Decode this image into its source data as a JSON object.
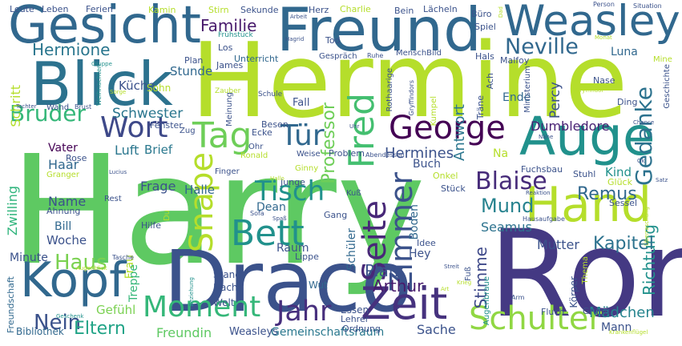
{
  "title": "Word cloud",
  "palette": {
    "background": "#ffffff",
    "lime": "#b5de2b",
    "green": "#5ec962",
    "teal": "#21918c",
    "blue": "#3b528b",
    "indigo": "#443983",
    "purple": "#440154"
  },
  "words": [
    {
      "text": "Harry",
      "color": "#5ec962"
    },
    {
      "text": "Hermine",
      "color": "#b5de2b"
    },
    {
      "text": "Ron",
      "color": "#443983"
    },
    {
      "text": "Draco",
      "color": "#3b528b"
    },
    {
      "text": "Blick",
      "color": "#2c728e"
    },
    {
      "text": "Freund",
      "color": "#31688e"
    },
    {
      "text": "Gesicht",
      "color": "#31688e"
    },
    {
      "text": "Auge",
      "color": "#21918c"
    },
    {
      "text": "Hand",
      "color": "#b5de2b"
    },
    {
      "text": "Zeit",
      "color": "#46327e"
    },
    {
      "text": "Kopf",
      "color": "#31688e"
    },
    {
      "text": "Weasley",
      "color": "#31688e"
    },
    {
      "text": "George",
      "color": "#440154"
    },
    {
      "text": "Tag",
      "color": "#6ece58"
    },
    {
      "text": "Wort",
      "color": "#3e4989"
    },
    {
      "text": "Moment",
      "color": "#35b779"
    },
    {
      "text": "Schulter",
      "color": "#90d743"
    },
    {
      "text": "Tür",
      "color": "#31688e"
    },
    {
      "text": "Bett",
      "color": "#21918c"
    },
    {
      "text": "Fred",
      "color": "#44bf70"
    },
    {
      "text": "Seite",
      "color": "#482878"
    },
    {
      "text": "Jahr",
      "color": "#472f7d"
    },
    {
      "text": "Snape",
      "color": "#b5de2b"
    },
    {
      "text": "Tisch",
      "color": "#21918c"
    },
    {
      "text": "Zimmer",
      "color": "#3b528b"
    },
    {
      "text": "Gedanke",
      "color": "#2c728e"
    },
    {
      "text": "Bruder",
      "color": "#35b779"
    },
    {
      "text": "Blaise",
      "color": "#472c7a"
    },
    {
      "text": "Mund",
      "color": "#26828e"
    },
    {
      "text": "Neville",
      "color": "#31688e"
    },
    {
      "text": "Haus",
      "color": "#7ad151"
    },
    {
      "text": "Nein",
      "color": "#3b528b"
    },
    {
      "text": "Hermione",
      "color": "#2a768e"
    },
    {
      "text": "Familie",
      "color": "#481a6c"
    },
    {
      "text": "Professor",
      "color": "#6ece58"
    },
    {
      "text": "Stimme",
      "color": "#3e4989"
    },
    {
      "text": "Richtung",
      "color": "#21918c"
    },
    {
      "text": "Remus",
      "color": "#31688e"
    },
    {
      "text": "Kapitel",
      "color": "#2c728e"
    },
    {
      "text": "Eltern",
      "color": "#20a386"
    },
    {
      "text": "Luna",
      "color": "#31688e"
    },
    {
      "text": "Platz",
      "color": "#3b528b"
    },
    {
      "text": "Arthur",
      "color": "#481a6c"
    },
    {
      "text": "Schwester",
      "color": "#2a768e"
    },
    {
      "text": "Dumbledore",
      "color": "#482173"
    },
    {
      "text": "Hermines",
      "color": "#3b528b"
    },
    {
      "text": "Mädchen",
      "color": "#25848e"
    },
    {
      "text": "Antwort",
      "color": "#2a768e"
    },
    {
      "text": "Percy",
      "color": "#3b528b"
    },
    {
      "text": "Mutter",
      "color": "#3b528b"
    },
    {
      "text": "Seamus",
      "color": "#2c728e"
    },
    {
      "text": "Sache",
      "color": "#3b528b"
    },
    {
      "text": "Freundin",
      "color": "#5ec962"
    },
    {
      "text": "Gemeinschaftsraum",
      "color": "#2a788e"
    },
    {
      "text": "Weasleys",
      "color": "#3b528b"
    },
    {
      "text": "Mann",
      "color": "#3b528b"
    },
    {
      "text": "Kind",
      "color": "#21918c"
    },
    {
      "text": "Stunde",
      "color": "#31688e"
    },
    {
      "text": "Küche",
      "color": "#3b528b"
    },
    {
      "text": "Schritt",
      "color": "#b5de2b"
    },
    {
      "text": "Frage",
      "color": "#3b528b"
    },
    {
      "text": "Luft",
      "color": "#2a768e"
    },
    {
      "text": "Vater",
      "color": "#440154"
    },
    {
      "text": "Haar",
      "color": "#31688e"
    },
    {
      "text": "Name",
      "color": "#3b528b"
    },
    {
      "text": "Woche",
      "color": "#3b528b"
    },
    {
      "text": "Minute",
      "color": "#3b528b"
    },
    {
      "text": "Bill",
      "color": "#31688e"
    },
    {
      "text": "Zwilling",
      "color": "#2fb47c"
    },
    {
      "text": "Gefühl",
      "color": "#7ad151"
    },
    {
      "text": "Brief",
      "color": "#2a788e"
    },
    {
      "text": "Halle",
      "color": "#31688e"
    },
    {
      "text": "Fall",
      "color": "#3b528b"
    },
    {
      "text": "Ende",
      "color": "#31688e"
    },
    {
      "text": "Sohn",
      "color": "#b5de2b"
    },
    {
      "text": "Buch",
      "color": "#3b528b"
    },
    {
      "text": "Raum",
      "color": "#3b528b"
    },
    {
      "text": "Hey",
      "color": "#3b528b"
    },
    {
      "text": "Boden",
      "color": "#31688e"
    },
    {
      "text": "Schüler",
      "color": "#31688e"
    },
    {
      "text": "Frau",
      "color": "#b5de2b"
    },
    {
      "text": "Treppe",
      "color": "#35b779"
    },
    {
      "text": "Dean",
      "color": "#31688e"
    },
    {
      "text": "Junge",
      "color": "#3b528b"
    },
    {
      "text": "Nacht",
      "color": "#3b528b"
    },
    {
      "text": "Stand",
      "color": "#3b528b"
    },
    {
      "text": "Wut",
      "color": "#31688e"
    },
    {
      "text": "Welt",
      "color": "#3b528b"
    },
    {
      "text": "Essen",
      "color": "#3b528b"
    },
    {
      "text": "Lehrer",
      "color": "#3b528b"
    },
    {
      "text": "Ordnung",
      "color": "#3b528b"
    },
    {
      "text": "Bibliothek",
      "color": "#31688e"
    },
    {
      "text": "Freundschaft",
      "color": "#31688e"
    },
    {
      "text": "Augenbraue",
      "color": "#21918c"
    },
    {
      "text": "Körper",
      "color": "#3b528b"
    },
    {
      "text": "Grund",
      "color": "#3b528b"
    },
    {
      "text": "Fluch",
      "color": "#3b528b"
    },
    {
      "text": "Thema",
      "color": "#b5de2b"
    },
    {
      "text": "Leute",
      "color": "#3b528b"
    },
    {
      "text": "Leben",
      "color": "#3b528b"
    },
    {
      "text": "Ferien",
      "color": "#3b528b"
    },
    {
      "text": "Kamin",
      "color": "#b5de2b"
    },
    {
      "text": "Stirn",
      "color": "#b5de2b"
    },
    {
      "text": "Sekunde",
      "color": "#3b528b"
    },
    {
      "text": "Herz",
      "color": "#3b528b"
    },
    {
      "text": "Charlie",
      "color": "#b5de2b"
    },
    {
      "text": "Bein",
      "color": "#3b528b"
    },
    {
      "text": "Lächeln",
      "color": "#3b528b"
    },
    {
      "text": "Büro",
      "color": "#3b528b"
    },
    {
      "text": "Dad",
      "color": "#b5de2b"
    },
    {
      "text": "Person",
      "color": "#3b528b"
    },
    {
      "text": "Situation",
      "color": "#3b528b"
    },
    {
      "text": "Arbeit",
      "color": "#3b528b"
    },
    {
      "text": "Frühstück",
      "color": "#21918c"
    },
    {
      "text": "Hagrid",
      "color": "#3b528b"
    },
    {
      "text": "Tod",
      "color": "#3b528b"
    },
    {
      "text": "Spiel",
      "color": "#3b528b"
    },
    {
      "text": "Weihnachten",
      "color": "#21918c"
    },
    {
      "text": "Gruppe",
      "color": "#21918c"
    },
    {
      "text": "Plan",
      "color": "#3b528b"
    },
    {
      "text": "Los",
      "color": "#3b528b"
    },
    {
      "text": "Unterricht",
      "color": "#31688e"
    },
    {
      "text": "Gespräch",
      "color": "#3b528b"
    },
    {
      "text": "Ruhe",
      "color": "#3b528b"
    },
    {
      "text": "MenschBild",
      "color": "#3b528b"
    },
    {
      "text": "Hals",
      "color": "#3b528b"
    },
    {
      "text": "Monat",
      "color": "#b5de2b"
    },
    {
      "text": "Mine",
      "color": "#b5de2b"
    },
    {
      "text": "Malfoy",
      "color": "#3b528b"
    },
    {
      "text": "James",
      "color": "#3b528b"
    },
    {
      "text": "Rothaarige",
      "color": "#3b528b"
    },
    {
      "text": "Gryffindors",
      "color": "#3b528b"
    },
    {
      "text": "Ach",
      "color": "#3b528b"
    },
    {
      "text": "Ministerium",
      "color": "#3b528b"
    },
    {
      "text": "Nase",
      "color": "#3b528b"
    },
    {
      "text": "Geschichte",
      "color": "#3b528b"
    },
    {
      "text": "Sorge",
      "color": "#b5de2b"
    },
    {
      "text": "Zauber",
      "color": "#b5de2b"
    },
    {
      "text": "Meinung",
      "color": "#3b528b"
    },
    {
      "text": "Schule",
      "color": "#3b528b"
    },
    {
      "text": "Kumpel",
      "color": "#b5de2b"
    },
    {
      "text": "Träne",
      "color": "#3b528b"
    },
    {
      "text": "Ding",
      "color": "#3b528b"
    },
    {
      "text": "Gryffindor",
      "color": "#b5de2b"
    },
    {
      "text": "Tochter",
      "color": "#3b528b"
    },
    {
      "text": "Wand",
      "color": "#3b528b"
    },
    {
      "text": "Brust",
      "color": "#3b528b"
    },
    {
      "text": "Fenster",
      "color": "#3b528b"
    },
    {
      "text": "Zug",
      "color": "#3b528b"
    },
    {
      "text": "Ecke",
      "color": "#3b528b"
    },
    {
      "text": "Besen",
      "color": "#3b528b"
    },
    {
      "text": "Uhr",
      "color": "#3b528b"
    },
    {
      "text": "Nähe",
      "color": "#3b528b"
    },
    {
      "text": "Chance",
      "color": "#3b528b"
    },
    {
      "text": "Rose",
      "color": "#3b528b"
    },
    {
      "text": "Ohr",
      "color": "#3b528b"
    },
    {
      "text": "Ronald",
      "color": "#b5de2b"
    },
    {
      "text": "Weise",
      "color": "#3b528b"
    },
    {
      "text": "Problem",
      "color": "#3b528b"
    },
    {
      "text": "Abendessen",
      "color": "#3b528b"
    },
    {
      "text": "Glück",
      "color": "#b5de2b"
    },
    {
      "text": "Ok",
      "color": "#3b528b"
    },
    {
      "text": "Granger",
      "color": "#b5de2b"
    },
    {
      "text": "Lucius",
      "color": "#3b528b"
    },
    {
      "text": "Finger",
      "color": "#3b528b"
    },
    {
      "text": "Ginny",
      "color": "#b5de2b"
    },
    {
      "text": "Hallo",
      "color": "#b5de2b"
    },
    {
      "text": "Onkel",
      "color": "#b5de2b"
    },
    {
      "text": "Stuhl",
      "color": "#3b528b"
    },
    {
      "text": "Sessel",
      "color": "#3b528b"
    },
    {
      "text": "Satz",
      "color": "#3b528b"
    },
    {
      "text": "Fuchsbau",
      "color": "#3b528b"
    },
    {
      "text": "Ahnung",
      "color": "#3b528b"
    },
    {
      "text": "Rest",
      "color": "#3b528b"
    },
    {
      "text": "Kuß",
      "color": "#3b528b"
    },
    {
      "text": "Stück",
      "color": "#3b528b"
    },
    {
      "text": "Reaktion",
      "color": "#3b528b"
    },
    {
      "text": "Sofa",
      "color": "#3b528b"
    },
    {
      "text": "Spaß",
      "color": "#3b528b"
    },
    {
      "text": "Gang",
      "color": "#3b528b"
    },
    {
      "text": "Hausaufgabe",
      "color": "#3b528b"
    },
    {
      "text": "Hilfe",
      "color": "#3b528b"
    },
    {
      "text": "Du",
      "color": "#b5de2b"
    },
    {
      "text": "Überraschung",
      "color": "#b5de2b"
    },
    {
      "text": "Idee",
      "color": "#3b528b"
    },
    {
      "text": "Lippe",
      "color": "#3b528b"
    },
    {
      "text": "Tasche",
      "color": "#3b528b"
    },
    {
      "text": "Augenblick",
      "color": "#b5de2b"
    },
    {
      "text": "Streit",
      "color": "#3b528b"
    },
    {
      "text": "Beziehung",
      "color": "#21918c"
    },
    {
      "text": "Fuß",
      "color": "#3b528b"
    },
    {
      "text": "Art",
      "color": "#b5de2b"
    },
    {
      "text": "Krieg",
      "color": "#b5de2b"
    },
    {
      "text": "Arm",
      "color": "#3b528b"
    },
    {
      "text": "Geschenk",
      "color": "#21918c"
    },
    {
      "text": "Krankenflügel",
      "color": "#b5de2b"
    },
    {
      "text": "Na",
      "color": "#b5de2b"
    }
  ]
}
